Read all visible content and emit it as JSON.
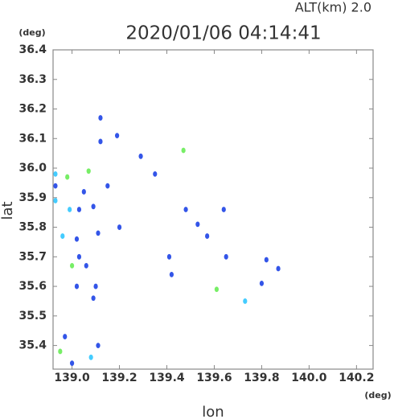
{
  "chart_data": {
    "type": "scatter",
    "title": "2020/01/06 04:14:41",
    "annotation": "ALT(km)  2.0",
    "y_unit": "(deg)",
    "x_unit": "(deg)",
    "xlabel": "lon",
    "ylabel": "lat",
    "xlim": [
      138.92,
      140.27
    ],
    "ylim": [
      35.32,
      36.4
    ],
    "xticks": [
      {
        "value": 139,
        "label": "139.0"
      },
      139.2,
      139.4,
      139.6,
      139.8,
      {
        "value": 140,
        "label": "140.0"
      },
      140.2
    ],
    "yticks": [
      35.4,
      35.5,
      35.6,
      35.7,
      35.8,
      35.9,
      {
        "value": 36,
        "label": "36.0"
      },
      36.1,
      36.2,
      36.3,
      36.4
    ],
    "series": [
      {
        "color": "#3355e8",
        "x": [
          139.12,
          139.19,
          139.12,
          139.29,
          139.35,
          138.93,
          139.05,
          139.15,
          139.03,
          139.09,
          139.48,
          139.64,
          139.53,
          139.2,
          139.57,
          139.02,
          139.11,
          139.41,
          139.03,
          139.06,
          139.65,
          139.82,
          139.87,
          139.42,
          139.02,
          139.1,
          139.8,
          139.09,
          138.97,
          139.11,
          139.0
        ],
        "y": [
          36.17,
          36.11,
          36.09,
          36.04,
          35.98,
          35.94,
          35.92,
          35.94,
          35.86,
          35.87,
          35.86,
          35.86,
          35.81,
          35.8,
          35.77,
          35.76,
          35.78,
          35.7,
          35.7,
          35.67,
          35.7,
          35.69,
          35.66,
          35.64,
          35.6,
          35.6,
          35.61,
          35.56,
          35.43,
          35.4,
          35.34
        ]
      },
      {
        "color": "#44ccff",
        "x": [
          138.93,
          138.93,
          138.99,
          138.96,
          139.73,
          139.08
        ],
        "y": [
          35.98,
          35.89,
          35.86,
          35.77,
          35.55,
          35.36
        ]
      },
      {
        "color": "#77ee66",
        "x": [
          139.47,
          138.98,
          139.07,
          139.0,
          139.61,
          138.95
        ],
        "y": [
          36.06,
          35.97,
          35.99,
          35.67,
          35.59,
          35.38
        ]
      }
    ]
  }
}
